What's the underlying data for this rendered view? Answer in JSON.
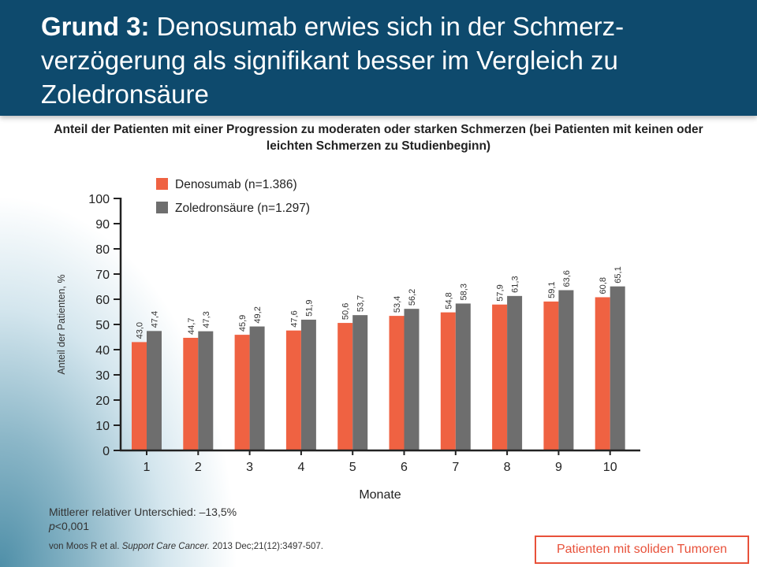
{
  "header": {
    "title_bold": "Grund 3:",
    "title_rest": " Denosumab erwies sich in der Schmerz-verzögerung als signifikant besser im Vergleich zu Zoledronsäure"
  },
  "colors": {
    "header_bg": "#0e4a6d",
    "denosumab": "#ef6242",
    "zoledronsaeure": "#6e6e6e",
    "accent": "#e8513a"
  },
  "chart_data": {
    "type": "bar",
    "title": "Anteil der Patienten mit einer Progression zu moderaten oder starken Schmerzen (bei Patienten mit keinen oder leichten Schmerzen zu Studienbeginn)",
    "xlabel": "Monate",
    "ylabel": "Anteil der Patienten, %",
    "ylim": [
      0,
      100
    ],
    "yticks": [
      "0",
      "10",
      "20",
      "30",
      "40",
      "50",
      "60",
      "70",
      "80",
      "90",
      "100"
    ],
    "categories": [
      "1",
      "2",
      "3",
      "4",
      "5",
      "6",
      "7",
      "8",
      "9",
      "10"
    ],
    "legend_position": "top-left",
    "series": [
      {
        "name": "Denosumab (n=1.386)",
        "color": "#ef6242",
        "values": [
          43.0,
          44.7,
          45.9,
          47.6,
          50.6,
          53.4,
          54.8,
          57.9,
          59.1,
          60.8
        ],
        "labels": [
          "43,0",
          "44,7",
          "45,9",
          "47,6",
          "50,6",
          "53,4",
          "54,8",
          "57,9",
          "59,1",
          "60,8"
        ]
      },
      {
        "name": "Zoledronsäure (n=1.297)",
        "color": "#6e6e6e",
        "values": [
          47.4,
          47.3,
          49.2,
          51.9,
          53.7,
          56.2,
          58.3,
          61.3,
          63.6,
          65.1
        ],
        "labels": [
          "47,4",
          "47,3",
          "49,2",
          "51,9",
          "53,7",
          "56,2",
          "58,3",
          "61,3",
          "63,6",
          "65,1"
        ]
      }
    ]
  },
  "footnote": {
    "line1": "Mittlerer relativer Unterschied: –13,5%",
    "p_italic": "p",
    "p_rest": "<0,001"
  },
  "citation": {
    "authors": "von Moos R et al. ",
    "journal": "Support Care Cancer.",
    "details": " 2013 Dec;21(12):3497-507."
  },
  "badge": "Patienten mit soliden Tumoren"
}
